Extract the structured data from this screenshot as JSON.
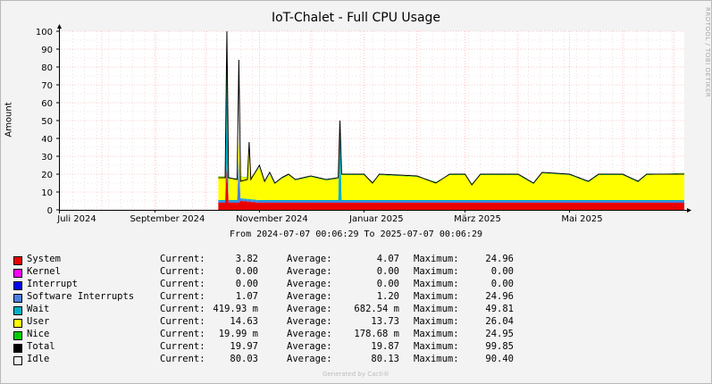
{
  "chart_data": {
    "type": "area",
    "title": "IoT-Chalet - Full CPU Usage",
    "ylabel": "Amount",
    "ylim": [
      0,
      100
    ],
    "yticks": [
      0,
      10,
      20,
      30,
      40,
      50,
      60,
      70,
      80,
      90,
      100
    ],
    "xlim": [
      "2024-07-07",
      "2025-07-07"
    ],
    "xticks": [
      {
        "label": "Juli 2024",
        "date": "2024-07-01"
      },
      {
        "label": "September 2024",
        "date": "2024-09-01"
      },
      {
        "label": "November 2024",
        "date": "2024-11-01"
      },
      {
        "label": "Januar 2025",
        "date": "2025-01-01"
      },
      {
        "label": "März 2025",
        "date": "2025-03-01"
      },
      {
        "label": "Mai 2025",
        "date": "2025-05-01"
      }
    ],
    "grid": true,
    "data_start": "2024-10-08",
    "series": [
      {
        "name": "System",
        "color": "#EA0000",
        "stacked": true,
        "points": [
          [
            "2024-10-08",
            4
          ],
          [
            "2024-10-12",
            4
          ],
          [
            "2024-10-13",
            25
          ],
          [
            "2024-10-14",
            4
          ],
          [
            "2024-10-20",
            4
          ],
          [
            "2024-10-21",
            5
          ],
          [
            "2024-11-01",
            4
          ],
          [
            "2024-12-01",
            4
          ],
          [
            "2025-01-01",
            4
          ],
          [
            "2025-02-01",
            4
          ],
          [
            "2025-03-01",
            4
          ],
          [
            "2025-04-01",
            4
          ],
          [
            "2025-05-01",
            4
          ],
          [
            "2025-06-01",
            4
          ],
          [
            "2025-07-07",
            4
          ]
        ]
      },
      {
        "name": "Kernel",
        "color": "#FF00FF",
        "stacked": true,
        "points": []
      },
      {
        "name": "Interrupt",
        "color": "#0000FF",
        "stacked": true,
        "points": []
      },
      {
        "name": "Software Interrupts",
        "color": "#4A80E0",
        "stacked": true,
        "points": [
          [
            "2024-10-08",
            1
          ],
          [
            "2024-10-19",
            1
          ],
          [
            "2024-10-20",
            25
          ],
          [
            "2024-10-21",
            1
          ],
          [
            "2024-12-01",
            1
          ],
          [
            "2025-02-01",
            1
          ],
          [
            "2025-04-01",
            1
          ],
          [
            "2025-07-07",
            1
          ]
        ]
      },
      {
        "name": "Wait",
        "color": "#00B0C8",
        "stacked": true,
        "points": [
          [
            "2024-10-08",
            0.5
          ],
          [
            "2024-10-12",
            0.5
          ],
          [
            "2024-10-13",
            50
          ],
          [
            "2024-10-14",
            0.5
          ],
          [
            "2024-12-17",
            0.5
          ],
          [
            "2024-12-18",
            45
          ],
          [
            "2024-12-19",
            0.5
          ],
          [
            "2025-07-07",
            0.5
          ]
        ]
      },
      {
        "name": "User",
        "color": "#FFFF00",
        "stacked": true,
        "points": [
          [
            "2024-10-08",
            13
          ],
          [
            "2024-10-12",
            13
          ],
          [
            "2024-10-13",
            0
          ],
          [
            "2024-10-14",
            12
          ],
          [
            "2024-10-19",
            12
          ],
          [
            "2024-10-20",
            10
          ],
          [
            "2024-10-21",
            12
          ],
          [
            "2024-10-25",
            12
          ],
          [
            "2024-10-26",
            28
          ],
          [
            "2024-10-27",
            12
          ],
          [
            "2024-11-01",
            18
          ],
          [
            "2024-11-04",
            10
          ],
          [
            "2024-11-07",
            14
          ],
          [
            "2024-11-10",
            9
          ],
          [
            "2024-11-14",
            12
          ],
          [
            "2024-11-18",
            14
          ],
          [
            "2024-11-22",
            11
          ],
          [
            "2024-12-01",
            13
          ],
          [
            "2024-12-10",
            11
          ],
          [
            "2024-12-17",
            12
          ],
          [
            "2024-12-18",
            0
          ],
          [
            "2024-12-19",
            14
          ],
          [
            "2025-01-01",
            14
          ],
          [
            "2025-01-06",
            10
          ],
          [
            "2025-01-10",
            14
          ],
          [
            "2025-02-01",
            13
          ],
          [
            "2025-02-12",
            10
          ],
          [
            "2025-02-20",
            14
          ],
          [
            "2025-03-01",
            14
          ],
          [
            "2025-03-05",
            9
          ],
          [
            "2025-03-10",
            14
          ],
          [
            "2025-04-01",
            14
          ],
          [
            "2025-04-10",
            9
          ],
          [
            "2025-04-15",
            15
          ],
          [
            "2025-05-01",
            14
          ],
          [
            "2025-05-12",
            10
          ],
          [
            "2025-05-18",
            14
          ],
          [
            "2025-06-01",
            14
          ],
          [
            "2025-06-10",
            10
          ],
          [
            "2025-06-15",
            14
          ],
          [
            "2025-07-07",
            15
          ]
        ]
      },
      {
        "name": "Nice",
        "color": "#00D000",
        "stacked": true,
        "points": [
          [
            "2024-10-08",
            0.2
          ],
          [
            "2024-10-12",
            0.2
          ],
          [
            "2024-10-13",
            25
          ],
          [
            "2024-10-14",
            0.2
          ],
          [
            "2025-07-07",
            0.2
          ]
        ]
      },
      {
        "name": "Total",
        "color": "#000000",
        "stacked": false,
        "line": true,
        "points": [
          [
            "2024-10-08",
            18
          ],
          [
            "2024-10-12",
            18
          ],
          [
            "2024-10-13",
            100
          ],
          [
            "2024-10-14",
            18
          ],
          [
            "2024-10-19",
            17
          ],
          [
            "2024-10-20",
            84
          ],
          [
            "2024-10-21",
            16
          ],
          [
            "2024-10-25",
            17
          ],
          [
            "2024-10-26",
            38
          ],
          [
            "2024-10-27",
            17
          ],
          [
            "2024-11-01",
            25
          ],
          [
            "2024-11-04",
            16
          ],
          [
            "2024-11-07",
            21
          ],
          [
            "2024-11-10",
            15
          ],
          [
            "2024-11-14",
            18
          ],
          [
            "2024-11-18",
            20
          ],
          [
            "2024-11-22",
            17
          ],
          [
            "2024-12-01",
            19
          ],
          [
            "2024-12-10",
            17
          ],
          [
            "2024-12-17",
            18
          ],
          [
            "2024-12-18",
            50
          ],
          [
            "2024-12-19",
            20
          ],
          [
            "2025-01-01",
            20
          ],
          [
            "2025-01-06",
            15
          ],
          [
            "2025-01-10",
            20
          ],
          [
            "2025-02-01",
            19
          ],
          [
            "2025-02-12",
            15
          ],
          [
            "2025-02-20",
            20
          ],
          [
            "2025-03-01",
            20
          ],
          [
            "2025-03-05",
            14
          ],
          [
            "2025-03-10",
            20
          ],
          [
            "2025-04-01",
            20
          ],
          [
            "2025-04-10",
            15
          ],
          [
            "2025-04-15",
            21
          ],
          [
            "2025-05-01",
            20
          ],
          [
            "2025-05-12",
            16
          ],
          [
            "2025-05-18",
            20
          ],
          [
            "2025-06-01",
            20
          ],
          [
            "2025-06-10",
            16
          ],
          [
            "2025-06-15",
            20
          ],
          [
            "2025-07-07",
            20
          ]
        ]
      }
    ]
  },
  "watermark": "RRDTOOL / TOBI OETIKER",
  "range_text": "From 2024-07-07 00:06:29 To 2025-07-07 00:06:29",
  "legend": {
    "current_label": "Current:",
    "average_label": "Average:",
    "maximum_label": "Maximum:",
    "rows": [
      {
        "name": "System",
        "color": "#EA0000",
        "current": "3.82",
        "average": "4.07",
        "maximum": "24.96"
      },
      {
        "name": "Kernel",
        "color": "#FF00FF",
        "current": "0.00",
        "average": "0.00",
        "maximum": "0.00"
      },
      {
        "name": "Interrupt",
        "color": "#0000FF",
        "current": "0.00",
        "average": "0.00",
        "maximum": "0.00"
      },
      {
        "name": "Software Interrupts",
        "color": "#4A80E0",
        "current": "1.07",
        "average": "1.20",
        "maximum": "24.96"
      },
      {
        "name": "Wait",
        "color": "#00B0C8",
        "current": "419.93 m",
        "average": "682.54 m",
        "maximum": "49.81"
      },
      {
        "name": "User",
        "color": "#FFFF00",
        "current": "14.63",
        "average": "13.73",
        "maximum": "26.04"
      },
      {
        "name": "Nice",
        "color": "#00D000",
        "current": "19.99 m",
        "average": "178.68 m",
        "maximum": "24.95"
      },
      {
        "name": "Total",
        "color": "#000000",
        "current": "19.97",
        "average": "19.87",
        "maximum": "99.85"
      },
      {
        "name": "Idle",
        "color": "#F0F0F0",
        "current": "80.03",
        "average": "80.13",
        "maximum": "90.40"
      }
    ]
  },
  "generated_text": "Generated by Cacti®"
}
